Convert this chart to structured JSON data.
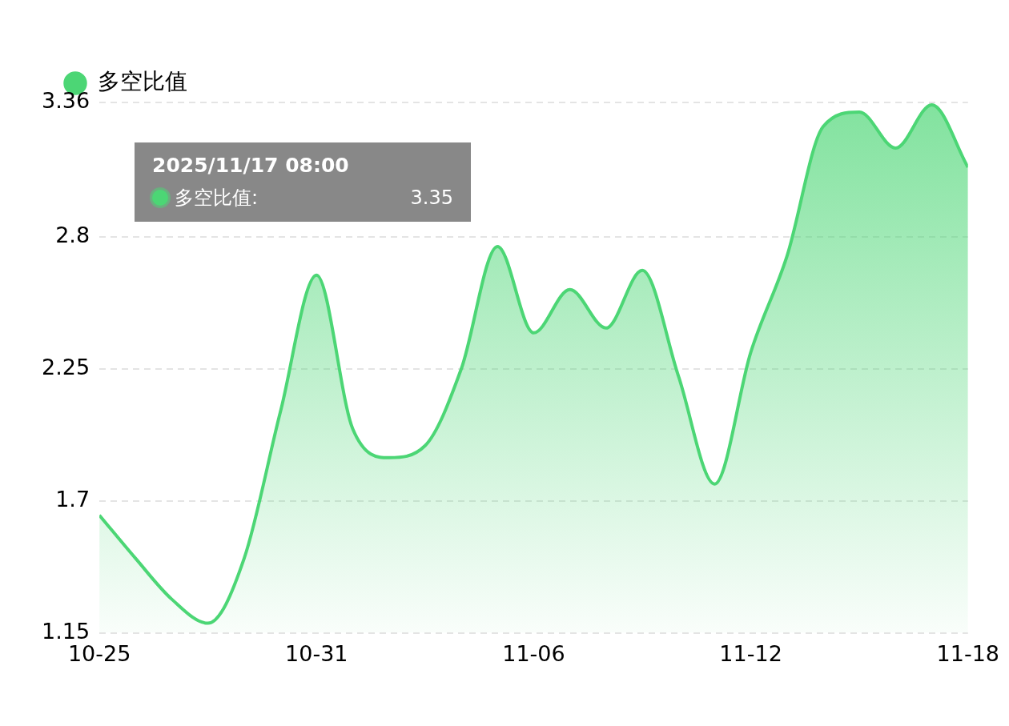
{
  "chart_data": {
    "type": "area",
    "x": [
      "2025-10-25",
      "2025-10-26",
      "2025-10-27",
      "2025-10-28",
      "2025-10-29",
      "2025-10-30",
      "2025-10-31",
      "2025-11-01",
      "2025-11-02",
      "2025-11-03",
      "2025-11-04",
      "2025-11-05",
      "2025-11-06",
      "2025-11-07",
      "2025-11-08",
      "2025-11-09",
      "2025-11-10",
      "2025-11-11",
      "2025-11-12",
      "2025-11-13",
      "2025-11-14",
      "2025-11-15",
      "2025-11-16",
      "2025-11-17",
      "2025-11-18"
    ],
    "series": [
      {
        "name": "多空比值",
        "color": "#4cd675",
        "values": [
          1.64,
          1.46,
          1.29,
          1.19,
          1.46,
          2.07,
          2.64,
          2.0,
          1.88,
          1.93,
          2.25,
          2.76,
          2.4,
          2.58,
          2.42,
          2.66,
          2.22,
          1.77,
          2.32,
          2.72,
          3.26,
          3.32,
          3.17,
          3.35,
          3.09
        ]
      }
    ],
    "xlim": [
      "2025-10-25",
      "2025-11-18"
    ],
    "xticks": [
      {
        "value": "2025-10-25",
        "label": "10-25"
      },
      {
        "value": "2025-10-31",
        "label": "10-31"
      },
      {
        "value": "2025-11-06",
        "label": "11-06"
      },
      {
        "value": "2025-11-12",
        "label": "11-12"
      },
      {
        "value": "2025-11-18",
        "label": "11-18"
      }
    ],
    "ylim": [
      1.15,
      3.36
    ],
    "yticks": [
      1.15,
      1.7,
      2.25,
      2.8,
      3.36
    ],
    "grid": "y",
    "line_style": "solid",
    "legend": "top left",
    "annotations": [
      "2025/11/17 08:00",
      "多空比值:",
      "3.35"
    ]
  }
}
